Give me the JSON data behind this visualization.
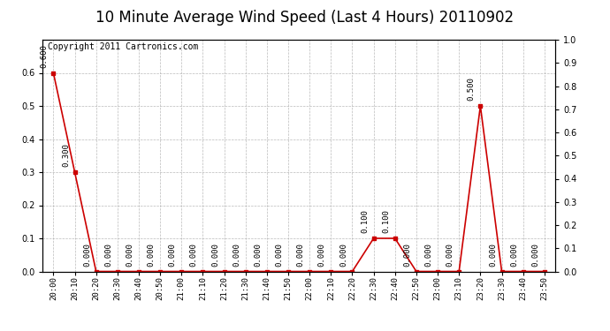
{
  "title": "10 Minute Average Wind Speed (Last 4 Hours) 20110902",
  "copyright_text": "Copyright 2011 Cartronics.com",
  "x_labels": [
    "20:00",
    "20:10",
    "20:20",
    "20:30",
    "20:40",
    "20:50",
    "21:00",
    "21:10",
    "21:20",
    "21:30",
    "21:40",
    "21:50",
    "22:00",
    "22:10",
    "22:20",
    "22:30",
    "22:40",
    "22:50",
    "23:00",
    "23:10",
    "23:20",
    "23:30",
    "23:40",
    "23:50"
  ],
  "y_values": [
    0.6,
    0.3,
    0.0,
    0.0,
    0.0,
    0.0,
    0.0,
    0.0,
    0.0,
    0.0,
    0.0,
    0.0,
    0.0,
    0.0,
    0.0,
    0.1,
    0.1,
    0.0,
    0.0,
    0.0,
    0.5,
    0.0,
    0.0,
    0.0
  ],
  "line_color": "#cc0000",
  "marker_color": "#cc0000",
  "background_color": "#ffffff",
  "plot_bg_color": "#ffffff",
  "grid_color": "#aaaaaa",
  "ylim_left": [
    0.0,
    0.7
  ],
  "ylim_right": [
    0.0,
    1.0
  ],
  "yticks_left": [
    0.0,
    0.1,
    0.2,
    0.3,
    0.4,
    0.5,
    0.6
  ],
  "yticks_right": [
    0.0,
    0.1,
    0.2,
    0.3,
    0.4,
    0.5,
    0.6,
    0.7,
    0.8,
    0.9,
    1.0
  ],
  "title_fontsize": 12,
  "annotation_fontsize": 6.5,
  "copyright_fontsize": 7
}
